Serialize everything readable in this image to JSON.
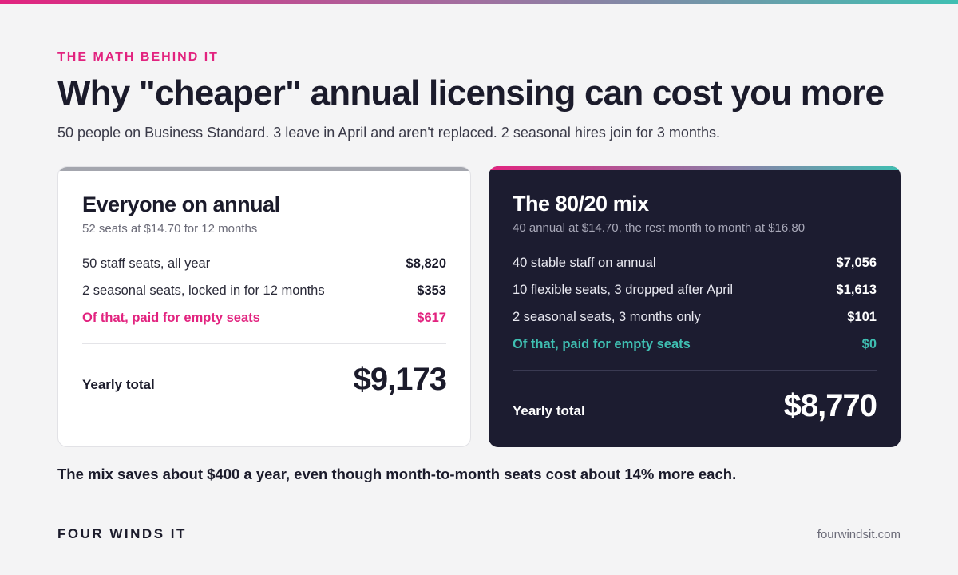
{
  "header": {
    "eyebrow": "THE MATH BEHIND IT",
    "title": "Why \"cheaper\" annual licensing can cost you more",
    "subtitle": "50 people on Business Standard. 3 leave in April and aren't replaced. 2 seasonal hires join for 3 months."
  },
  "cards": {
    "left": {
      "title": "Everyone on annual",
      "desc": "52 seats at $14.70 for 12 months",
      "rows": [
        {
          "label": "50 staff seats, all year",
          "value": "$8,820"
        },
        {
          "label": "2 seasonal seats, locked in for 12 months",
          "value": "$353"
        },
        {
          "label": "Of that, paid for empty seats",
          "value": "$617"
        }
      ],
      "total_label": "Yearly total",
      "total_value": "$9,173"
    },
    "right": {
      "title": "The 80/20 mix",
      "desc": "40 annual at $14.70, the rest month to month at $16.80",
      "rows": [
        {
          "label": "40 stable staff on annual",
          "value": "$7,056"
        },
        {
          "label": "10 flexible seats, 3 dropped after April",
          "value": "$1,613"
        },
        {
          "label": "2 seasonal seats, 3 months only",
          "value": "$101"
        },
        {
          "label": "Of that, paid for empty seats",
          "value": "$0"
        }
      ],
      "total_label": "Yearly total",
      "total_value": "$8,770"
    }
  },
  "summary": "The mix saves about $400 a year, even though month-to-month seats cost about 14% more each.",
  "footer": {
    "brand": "FOUR WINDS IT",
    "site": "fourwindsit.com"
  },
  "colors": {
    "accent_pink": "#e2237f",
    "accent_teal": "#3fbfb2",
    "dark_card": "#1c1c30",
    "background": "#f4f4f5"
  }
}
